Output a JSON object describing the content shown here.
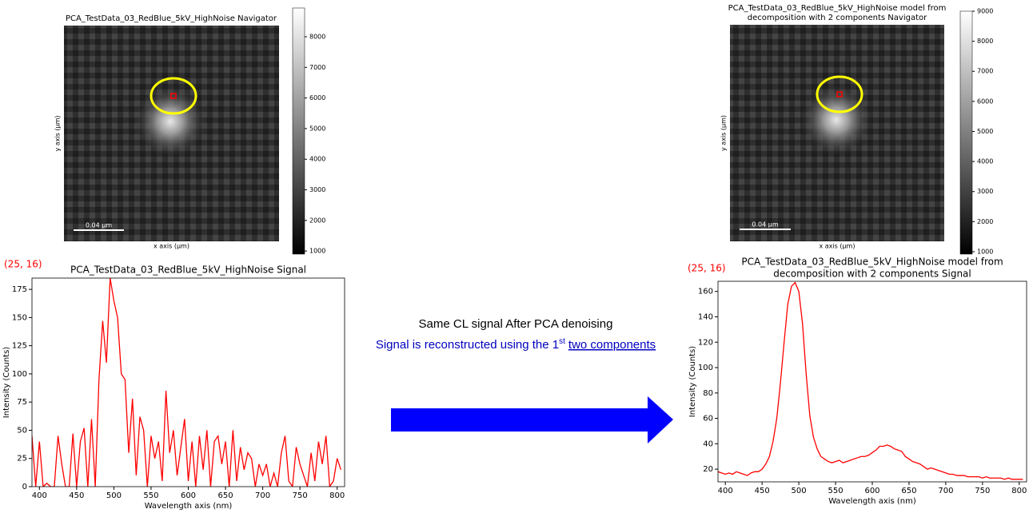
{
  "navigators": [
    {
      "title": [
        "PCA_TestData_03_RedBlue_5kV_HighNoise Navigator"
      ],
      "xlabel": "x axis (µm)",
      "ylabel": "y axis (µm)",
      "scalebar": "0.04 µm",
      "clim": [
        900,
        8940
      ],
      "cticks": [
        1000,
        2000,
        3000,
        4000,
        5000,
        6000,
        7000,
        8000
      ]
    },
    {
      "title": [
        "PCA_TestData_03_RedBlue_5kV_HighNoise model from",
        "decomposition with 2 components Navigator"
      ],
      "xlabel": "x axis (µm)",
      "ylabel": "y axis (µm)",
      "scalebar": "0.04 µm",
      "clim": [
        920,
        9000
      ],
      "cticks": [
        1000,
        2000,
        3000,
        4000,
        5000,
        6000,
        7000,
        8000,
        9000
      ]
    }
  ],
  "chart_data": [
    {
      "type": "line",
      "annotation": "(25, 16)",
      "title": [
        "PCA_TestData_03_RedBlue_5kV_HighNoise Signal"
      ],
      "xlabel": "Wavelength axis (nm)",
      "ylabel": "Intensity (Counts)",
      "color": "#ff0000",
      "x": [
        390,
        395,
        400,
        405,
        410,
        415,
        420,
        425,
        430,
        435,
        440,
        445,
        450,
        455,
        460,
        465,
        470,
        475,
        480,
        485,
        490,
        495,
        500,
        505,
        510,
        515,
        520,
        525,
        530,
        535,
        540,
        545,
        550,
        555,
        560,
        565,
        570,
        575,
        580,
        585,
        590,
        595,
        600,
        605,
        610,
        615,
        620,
        625,
        630,
        635,
        640,
        645,
        650,
        655,
        660,
        665,
        670,
        675,
        680,
        685,
        690,
        695,
        700,
        705,
        710,
        715,
        720,
        725,
        730,
        735,
        740,
        745,
        750,
        755,
        760,
        765,
        770,
        775,
        780,
        785,
        790,
        795,
        800,
        805
      ],
      "values": [
        45,
        0,
        40,
        0,
        3,
        0,
        0,
        45,
        20,
        0,
        0,
        47,
        0,
        40,
        52,
        0,
        60,
        0,
        95,
        147,
        110,
        185,
        165,
        150,
        100,
        95,
        30,
        78,
        10,
        62,
        50,
        0,
        45,
        25,
        40,
        5,
        85,
        30,
        50,
        10,
        35,
        60,
        5,
        40,
        0,
        45,
        15,
        50,
        0,
        40,
        45,
        20,
        40,
        0,
        50,
        5,
        35,
        15,
        30,
        25,
        0,
        20,
        10,
        20,
        0,
        12,
        0,
        30,
        45,
        5,
        0,
        35,
        20,
        10,
        0,
        30,
        5,
        40,
        20,
        45,
        0,
        5,
        25,
        15
      ],
      "xlim": [
        390,
        810
      ],
      "ylim": [
        0,
        185
      ],
      "xticks": [
        400,
        450,
        500,
        550,
        600,
        650,
        700,
        750,
        800
      ],
      "yticks": [
        0,
        25,
        50,
        75,
        100,
        125,
        150,
        175
      ]
    },
    {
      "type": "line",
      "annotation": "(25, 16)",
      "title": [
        "PCA_TestData_03_RedBlue_5kV_HighNoise model from",
        "decomposition with 2 components Signal"
      ],
      "xlabel": "Wavelength axis (nm)",
      "ylabel": "Intensity (Counts)",
      "color": "#ff0000",
      "x": [
        390,
        395,
        400,
        405,
        410,
        415,
        420,
        425,
        430,
        435,
        440,
        445,
        450,
        455,
        460,
        465,
        470,
        475,
        480,
        485,
        490,
        495,
        500,
        505,
        510,
        515,
        520,
        525,
        530,
        535,
        540,
        545,
        550,
        555,
        560,
        565,
        570,
        575,
        580,
        585,
        590,
        595,
        600,
        605,
        610,
        615,
        620,
        625,
        630,
        635,
        640,
        645,
        650,
        655,
        660,
        665,
        670,
        675,
        680,
        685,
        690,
        695,
        700,
        705,
        710,
        715,
        720,
        725,
        730,
        735,
        740,
        745,
        750,
        755,
        760,
        765,
        770,
        775,
        780,
        785,
        790,
        795,
        800,
        805
      ],
      "values": [
        18,
        17,
        16,
        17,
        16,
        18,
        17,
        16,
        15,
        17,
        18,
        18,
        20,
        24,
        30,
        42,
        60,
        88,
        120,
        150,
        164,
        167,
        160,
        135,
        95,
        62,
        45,
        36,
        30,
        28,
        26,
        25,
        26,
        27,
        25,
        26,
        27,
        28,
        29,
        30,
        30,
        31,
        33,
        35,
        38,
        38,
        39,
        38,
        36,
        35,
        34,
        30,
        28,
        26,
        25,
        24,
        22,
        20,
        21,
        20,
        19,
        18,
        17,
        16,
        16,
        15,
        15,
        15,
        14,
        14,
        14,
        14,
        13,
        14,
        13,
        13,
        13,
        13,
        12,
        13,
        12,
        12,
        12,
        12
      ],
      "xlim": [
        390,
        810
      ],
      "ylim": [
        10,
        168
      ],
      "xticks": [
        400,
        450,
        500,
        550,
        600,
        650,
        700,
        750,
        800
      ],
      "yticks": [
        20,
        40,
        60,
        80,
        100,
        120,
        140,
        160
      ]
    }
  ],
  "middle": {
    "line1": "Same CL signal After PCA denoising",
    "line2": "Signal is reconstructed using the 1",
    "sup": "st",
    "underlined": "two components"
  }
}
